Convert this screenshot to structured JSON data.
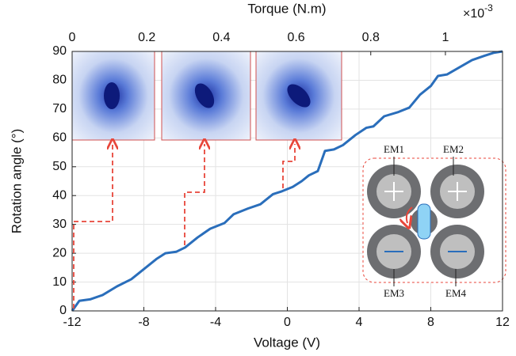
{
  "chart_data": {
    "type": "line",
    "x_label": "Voltage (V)",
    "y_label": "Rotation angle (°)",
    "x2_label": "Torque (N.m)",
    "x2_multiplier": {
      "base": "×10",
      "exponent": "-3"
    },
    "xlim": [
      -12,
      12
    ],
    "xticks": [
      -12,
      -8,
      -4,
      0,
      4,
      8,
      12
    ],
    "ylim": [
      0,
      90
    ],
    "yticks": [
      0,
      10,
      20,
      30,
      40,
      50,
      60,
      70,
      80,
      90
    ],
    "x2lim": [
      0,
      1.153
    ],
    "x2ticks": [
      0,
      0.2,
      0.4,
      0.6,
      0.8,
      1
    ],
    "grid": true,
    "x": [
      -12,
      -11.6,
      -11,
      -10.3,
      -9.5,
      -8.7,
      -8,
      -7.3,
      -6.8,
      -6.2,
      -5.7,
      -5,
      -4.3,
      -3.5,
      -3,
      -2.2,
      -1.5,
      -0.8,
      -0.3,
      0.3,
      0.8,
      1.2,
      1.7,
      2.1,
      2.6,
      3.1,
      3.8,
      4.4,
      4.8,
      5.4,
      6.2,
      6.8,
      7.4,
      8,
      8.4,
      8.9,
      9.6,
      10.3,
      11,
      11.5,
      12
    ],
    "series": [
      {
        "color": "#2a6ebb",
        "values": [
          0,
          3.5,
          4,
          5.5,
          8.5,
          11,
          14.5,
          18,
          20,
          20.5,
          22,
          25.5,
          28.5,
          30.5,
          33.5,
          35.5,
          37,
          40.5,
          41.5,
          43,
          45,
          47,
          48.5,
          55.5,
          56,
          57.5,
          61,
          63.5,
          64,
          67.5,
          69,
          70.5,
          75,
          78,
          81.5,
          82,
          84.5,
          87,
          88.5,
          89.5,
          90
        ]
      }
    ],
    "annotations": [
      "EM1",
      "EM2",
      "EM3",
      "EM4"
    ]
  }
}
